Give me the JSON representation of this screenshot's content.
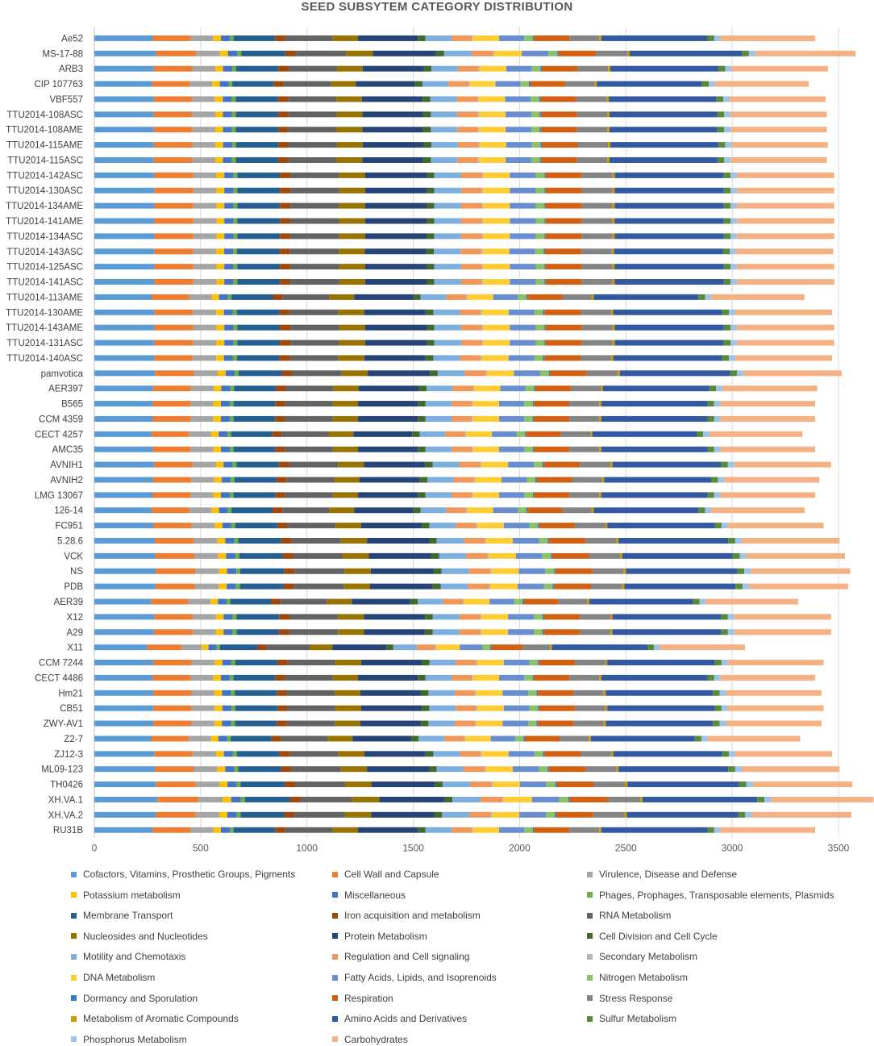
{
  "chart_data": {
    "type": "bar",
    "orientation": "horizontal",
    "stacked": true,
    "title": "SEED SUBSYTEM CATEGORY DISTRIBUTION",
    "xlabel": "",
    "ylabel": "",
    "xlim": [
      0,
      3650
    ],
    "xticks": [
      0,
      500,
      1000,
      1500,
      2000,
      2500,
      3000,
      3500
    ],
    "grid": true,
    "legend_position": "bottom",
    "categories": [
      "Cofactors, Vitamins, Prosthetic Groups, Pigments",
      "Cell Wall and Capsule",
      "Virulence, Disease and Defense",
      "Potassium metabolism",
      "Miscellaneous",
      "Phages, Prophages, Transposable elements, Plasmids",
      "Membrane Transport",
      "Iron acquisition and metabolism",
      "RNA Metabolism",
      "Nucleosides and Nucleotides",
      "Protein Metabolism",
      "Cell Division and Cell Cycle",
      "Motility and Chemotaxis",
      "Regulation and Cell signaling",
      "Secondary Metabolism",
      "DNA Metabolism",
      "Fatty Acids, Lipids, and Isoprenoids",
      "Nitrogen Metabolism",
      "Dormancy and Sporulation",
      "Respiration",
      "Stress Response",
      "Metabolism of Aromatic Compounds",
      "Amino Acids and Derivatives",
      "Sulfur Metabolism",
      "Phosphorus Metabolism",
      "Carbohydrates"
    ],
    "colors": [
      "#5B9BD5",
      "#ED7D31",
      "#A5A5A5",
      "#FFC000",
      "#4472C4",
      "#70AD47",
      "#255E91",
      "#9E480E",
      "#636363",
      "#997300",
      "#264478",
      "#43682B",
      "#7CAFDD",
      "#F1975A",
      "#B7B7B7",
      "#FFCD33",
      "#698ED0",
      "#8CC168",
      "#327DC2",
      "#D26012",
      "#848484",
      "#CC9A00",
      "#335AA1",
      "#5A8A39",
      "#9DC3E6",
      "#F4B183"
    ],
    "genomes": [
      "Ae52",
      "MS-17-88",
      "ARB3",
      "CIP 107763",
      "VBF557",
      "TTU2014-108ASC",
      "TTU2014-108AME",
      "TTU2014-115AME",
      "TTU2014-115ASC",
      "TTU2014-142ASC",
      "TTU2014-130ASC",
      "TTU2014-134AME",
      "TTU2014-141AME",
      "TTU2014-134ASC",
      "TTU2014-143ASC",
      "TTU2014-125ASC",
      "TTU2014-141ASC",
      "TTU2014-113AME",
      "TTU2014-130AME",
      "TTU2014-143AME",
      "TTU2014-131ASC",
      "TTU2014-140ASC",
      "pamvotica",
      "AER397",
      "B565",
      "CCM 4359",
      "CECT 4257",
      "AMC35",
      "AVNIH1",
      "AVNIH2",
      "LMG 13067",
      "126-14",
      "FC951",
      "5.28.6",
      "VCK",
      "NS",
      "PDB",
      "AER39",
      "X12",
      "A29",
      "X11",
      "CCM 7244",
      "CECT 4486",
      "Hm21",
      "CB51",
      "ZWY-AV1",
      "Z2-7",
      "ZJ12-3",
      "ML09-123",
      "TH0426",
      "XH.VA.1",
      "XH.VA.2",
      "RU31B"
    ],
    "base_values": [
      278,
      180,
      108,
      36,
      42,
      18,
      198,
      48,
      226,
      120,
      285,
      36,
      124,
      96,
      6,
      124,
      120,
      40,
      6,
      168,
      142,
      10,
      505,
      32,
      30,
      450
    ],
    "totals": [
      3390,
      3580,
      3450,
      3360,
      3440,
      3445,
      3445,
      3450,
      3445,
      3480,
      3480,
      3480,
      3480,
      3480,
      3475,
      3480,
      3480,
      3340,
      3470,
      3480,
      3480,
      3470,
      3515,
      3400,
      3390,
      3390,
      3330,
      3390,
      3465,
      3410,
      3390,
      3340,
      3430,
      3505,
      3530,
      3555,
      3545,
      3310,
      3465,
      3465,
      3060,
      3430,
      3390,
      3420,
      3430,
      3420,
      3320,
      3470,
      3505,
      3565,
      3665,
      3560,
      3390
    ]
  }
}
